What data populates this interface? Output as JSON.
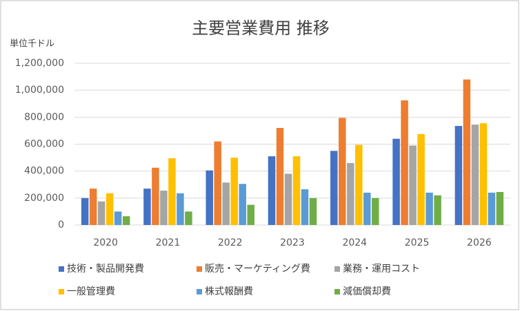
{
  "chart_data": {
    "type": "bar",
    "title": "主要営業費用 推移",
    "unit_label": "単位千ドル",
    "categories": [
      "2020",
      "2021",
      "2022",
      "2023",
      "2024",
      "2025",
      "2026"
    ],
    "series": [
      {
        "name": "技術・製品開発費",
        "color": "#4472c4",
        "values": [
          200000,
          270000,
          405000,
          510000,
          550000,
          640000,
          735000
        ]
      },
      {
        "name": "販売・マーケティング費",
        "color": "#ed7d31",
        "values": [
          270000,
          425000,
          620000,
          720000,
          795000,
          925000,
          1080000
        ]
      },
      {
        "name": "業務・運用コスト",
        "color": "#a5a5a5",
        "values": [
          175000,
          255000,
          315000,
          380000,
          460000,
          590000,
          745000
        ]
      },
      {
        "name": "一般管理費",
        "color": "#ffc000",
        "values": [
          235000,
          495000,
          500000,
          510000,
          595000,
          675000,
          755000
        ]
      },
      {
        "name": "株式報酬費",
        "color": "#5b9bd5",
        "values": [
          100000,
          235000,
          305000,
          265000,
          240000,
          240000,
          240000
        ]
      },
      {
        "name": "減価償却費",
        "color": "#70ad47",
        "values": [
          65000,
          100000,
          150000,
          200000,
          200000,
          220000,
          245000
        ]
      }
    ],
    "ylim": [
      0,
      1200000
    ],
    "yticks": [
      0,
      {
        "value": 200000,
        "label": "200,000"
      },
      {
        "value": 400000,
        "label": "400,000"
      },
      {
        "value": 600000,
        "label": "600,000"
      },
      {
        "value": 800000,
        "label": "800,000"
      },
      {
        "value": 1000000,
        "label": "1,000,000"
      },
      {
        "value": 1200000,
        "label": "1,200,000"
      }
    ],
    "grid": true
  }
}
